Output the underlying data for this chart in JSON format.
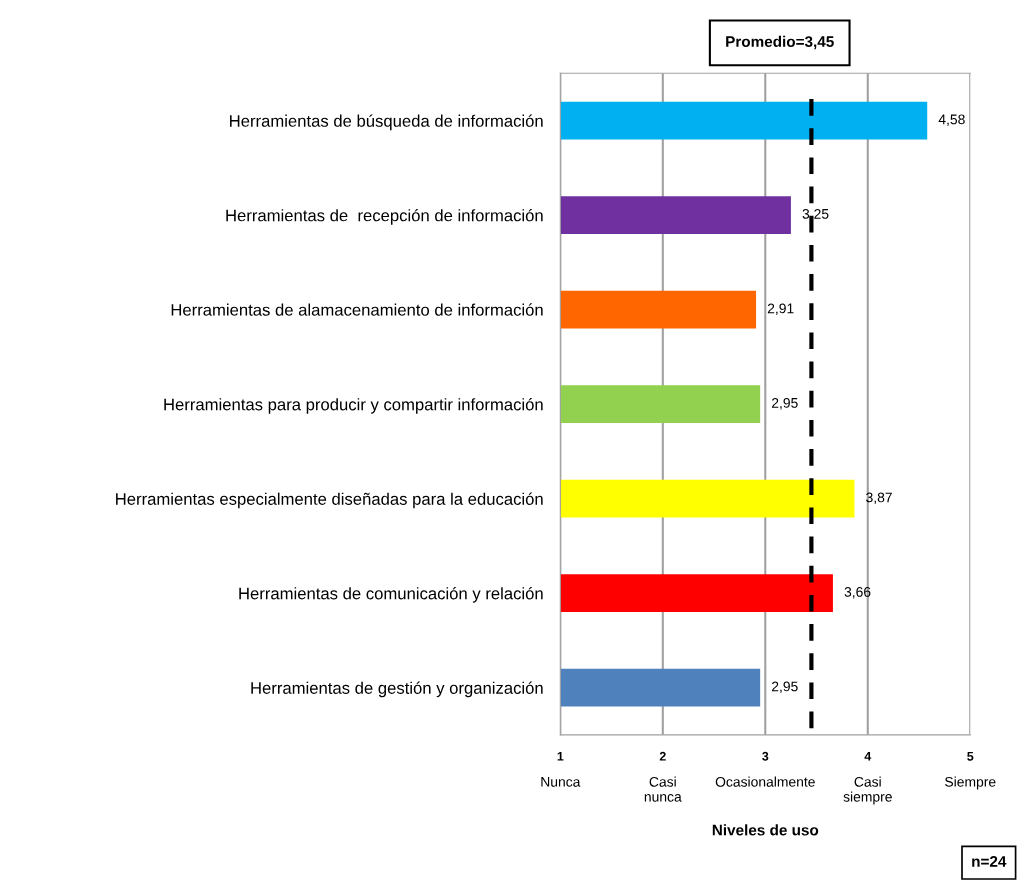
{
  "chart_data": {
    "type": "bar",
    "orientation": "horizontal",
    "categories": [
      "Herramientas de búsqueda de información",
      "Herramientas de  recepción de información",
      "Herramientas de alamacenamiento de información",
      "Herramientas para producir y compartir información",
      "Herramientas especialmente diseñadas para la educación",
      "Herramientas de comunicación y relación",
      "Herramientas de gestión y organización"
    ],
    "values": [
      4.58,
      3.25,
      2.91,
      2.95,
      3.87,
      3.66,
      2.95
    ],
    "colors": [
      "#00b0f0",
      "#7030a0",
      "#ff6600",
      "#92d050",
      "#ffff00",
      "#ff0000",
      "#4f81bd"
    ],
    "value_labels": [
      "4,58",
      "3,25",
      "2,91",
      "2,95",
      "3,87",
      "3,66",
      "2,95"
    ],
    "xlabel": "Niveles de uso",
    "xlim": [
      1,
      5
    ],
    "xticks": [
      1,
      2,
      3,
      4,
      5
    ],
    "ref_lines": [
      {
        "axis": "x",
        "value": 3.45,
        "label": "Promedio=3,45",
        "color": "#000000",
        "line_style": "dashed"
      }
    ],
    "annotations": [
      "Nunca",
      "Casi\nnunca",
      "Ocasionalmente",
      "Casi\nsiempre",
      "Siempre",
      "n=24"
    ],
    "grid": "x"
  }
}
